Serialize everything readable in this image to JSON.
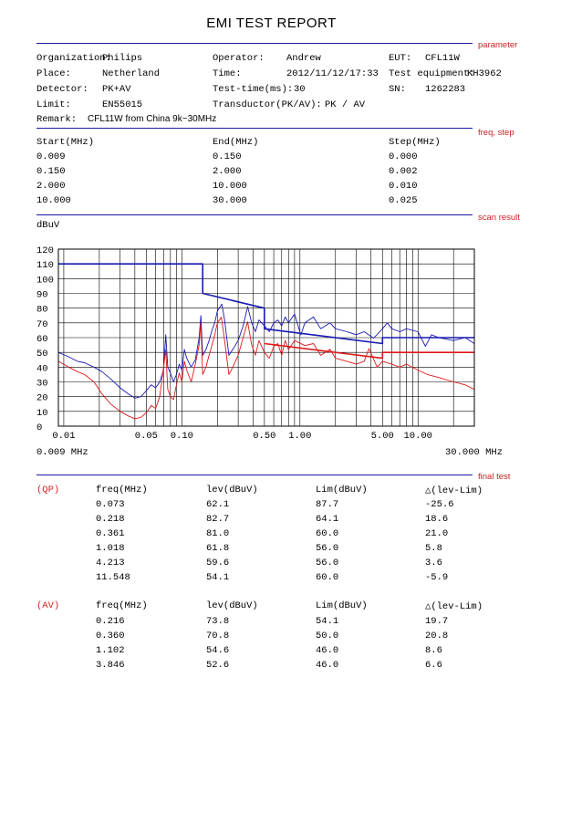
{
  "report_title": "EMI TEST REPORT",
  "section_labels": {
    "parameter": "parameter",
    "freq_step": "freq, step",
    "scan_result": "scan result",
    "final_test": "final test"
  },
  "parameter": {
    "organization_label": "Organization:",
    "organization": "Philips",
    "place_label": "Place:",
    "place": "Netherland",
    "detector_label": "Detector:",
    "detector": "PK+AV",
    "limit_label": "Limit:",
    "limit": "EN55015",
    "remark_label": "Remark:",
    "remark": "CFL11W from China 9k~30MHz",
    "operator_label": "Operator:",
    "operator": "Andrew",
    "time_label": "Time:",
    "time": "2012/11/12/17:33",
    "test_time_label": "Test-time(ms):",
    "test_time": "30",
    "transductor_label": "Transductor(PK/AV):",
    "transductor": "PK  /  AV",
    "eut_label": "EUT:",
    "eut": "CFL11W",
    "equipment_label": "Test equipment:",
    "equipment": "KH3962",
    "sn_label": "SN:",
    "sn": "1262283"
  },
  "freq_step": {
    "headers": [
      "Start(MHz)",
      "End(MHz)",
      "Step(MHz)"
    ],
    "rows": [
      [
        "0.009",
        "0.150",
        "0.000"
      ],
      [
        "0.150",
        "2.000",
        "0.002"
      ],
      [
        "2.000",
        "10.000",
        "0.010"
      ],
      [
        "10.000",
        "30.000",
        "0.025"
      ]
    ]
  },
  "chart_data": {
    "type": "line",
    "title": "scan result",
    "ylabel": "dBuV",
    "xscale": "log",
    "xlim": [
      0.009,
      30
    ],
    "ylim": [
      0,
      120
    ],
    "yticks": [
      "120",
      "110",
      "100",
      "90",
      "80",
      "70",
      "60",
      "50",
      "40",
      "30",
      "20",
      "10",
      "0"
    ],
    "xtick_labels": [
      {
        "v": 0.01,
        "label": "0.01"
      },
      {
        "v": 0.05,
        "label": "0.05"
      },
      {
        "v": 0.1,
        "label": "0.10"
      },
      {
        "v": 0.5,
        "label": "0.50"
      },
      {
        "v": 1,
        "label": "1.00"
      },
      {
        "v": 5,
        "label": "5.00"
      },
      {
        "v": 10,
        "label": "10.00"
      }
    ],
    "xrange_left": "0.009 MHz",
    "xrange_right": "30.000 MHz",
    "colors": {
      "qp": "#1a1ab4",
      "av": "#dd1a1a"
    },
    "series": [
      {
        "name": "QP limit",
        "color": "#1a1ab4",
        "points": [
          [
            0.009,
            110
          ],
          [
            0.15,
            110
          ],
          [
            0.15,
            90
          ],
          [
            0.5,
            80
          ],
          [
            0.5,
            66
          ],
          [
            5,
            56
          ],
          [
            5,
            60
          ],
          [
            30,
            60
          ]
        ]
      },
      {
        "name": "AV limit",
        "color": "#dd1a1a",
        "points": [
          [
            0.5,
            56
          ],
          [
            5,
            46
          ],
          [
            5,
            50
          ],
          [
            30,
            50
          ]
        ]
      },
      {
        "name": "QP scan",
        "color": "#1a1ab4",
        "points": [
          [
            0.009,
            50
          ],
          [
            0.011,
            47
          ],
          [
            0.013,
            44
          ],
          [
            0.015,
            43
          ],
          [
            0.018,
            40
          ],
          [
            0.021,
            37
          ],
          [
            0.025,
            32
          ],
          [
            0.03,
            26
          ],
          [
            0.035,
            22
          ],
          [
            0.04,
            19
          ],
          [
            0.045,
            20
          ],
          [
            0.05,
            24
          ],
          [
            0.055,
            28
          ],
          [
            0.06,
            26
          ],
          [
            0.065,
            30
          ],
          [
            0.07,
            38
          ],
          [
            0.073,
            62
          ],
          [
            0.076,
            40
          ],
          [
            0.08,
            36
          ],
          [
            0.085,
            30
          ],
          [
            0.09,
            35
          ],
          [
            0.095,
            42
          ],
          [
            0.1,
            38
          ],
          [
            0.105,
            52
          ],
          [
            0.11,
            46
          ],
          [
            0.12,
            40
          ],
          [
            0.13,
            45
          ],
          [
            0.14,
            60
          ],
          [
            0.145,
            75
          ],
          [
            0.15,
            48
          ],
          [
            0.16,
            52
          ],
          [
            0.17,
            58
          ],
          [
            0.18,
            65
          ],
          [
            0.19,
            70
          ],
          [
            0.2,
            78
          ],
          [
            0.218,
            82.7
          ],
          [
            0.23,
            72
          ],
          [
            0.25,
            48
          ],
          [
            0.27,
            52
          ],
          [
            0.3,
            58
          ],
          [
            0.33,
            68
          ],
          [
            0.361,
            81
          ],
          [
            0.39,
            70
          ],
          [
            0.42,
            64
          ],
          [
            0.45,
            72
          ],
          [
            0.5,
            68
          ],
          [
            0.55,
            64
          ],
          [
            0.6,
            70
          ],
          [
            0.65,
            72
          ],
          [
            0.7,
            68
          ],
          [
            0.75,
            74
          ],
          [
            0.8,
            70
          ],
          [
            0.9,
            76
          ],
          [
            1.018,
            61.8
          ],
          [
            1.1,
            70
          ],
          [
            1.3,
            74
          ],
          [
            1.5,
            66
          ],
          [
            1.8,
            70
          ],
          [
            2.0,
            66
          ],
          [
            2.5,
            64
          ],
          [
            3,
            62
          ],
          [
            3.5,
            64
          ],
          [
            4.213,
            59.6
          ],
          [
            5,
            66
          ],
          [
            5.5,
            70
          ],
          [
            6,
            66
          ],
          [
            7,
            64
          ],
          [
            8,
            66
          ],
          [
            10,
            64
          ],
          [
            11.548,
            54.1
          ],
          [
            13,
            62
          ],
          [
            15,
            60
          ],
          [
            20,
            58
          ],
          [
            25,
            60
          ],
          [
            30,
            56
          ]
        ]
      },
      {
        "name": "AV scan",
        "color": "#dd1a1a",
        "points": [
          [
            0.009,
            44
          ],
          [
            0.011,
            40
          ],
          [
            0.013,
            37
          ],
          [
            0.015,
            35
          ],
          [
            0.018,
            30
          ],
          [
            0.021,
            22
          ],
          [
            0.025,
            15
          ],
          [
            0.03,
            10
          ],
          [
            0.035,
            7
          ],
          [
            0.04,
            5
          ],
          [
            0.045,
            6
          ],
          [
            0.05,
            9
          ],
          [
            0.055,
            14
          ],
          [
            0.06,
            12
          ],
          [
            0.065,
            20
          ],
          [
            0.07,
            40
          ],
          [
            0.073,
            52
          ],
          [
            0.076,
            25
          ],
          [
            0.08,
            20
          ],
          [
            0.085,
            18
          ],
          [
            0.09,
            28
          ],
          [
            0.095,
            36
          ],
          [
            0.1,
            30
          ],
          [
            0.105,
            44
          ],
          [
            0.11,
            38
          ],
          [
            0.12,
            30
          ],
          [
            0.13,
            42
          ],
          [
            0.14,
            55
          ],
          [
            0.145,
            70
          ],
          [
            0.15,
            35
          ],
          [
            0.16,
            40
          ],
          [
            0.17,
            48
          ],
          [
            0.18,
            55
          ],
          [
            0.19,
            62
          ],
          [
            0.2,
            70
          ],
          [
            0.216,
            73.8
          ],
          [
            0.23,
            58
          ],
          [
            0.25,
            35
          ],
          [
            0.27,
            40
          ],
          [
            0.3,
            48
          ],
          [
            0.33,
            60
          ],
          [
            0.36,
            70.8
          ],
          [
            0.39,
            55
          ],
          [
            0.42,
            48
          ],
          [
            0.45,
            58
          ],
          [
            0.5,
            50
          ],
          [
            0.55,
            46
          ],
          [
            0.6,
            54
          ],
          [
            0.65,
            56
          ],
          [
            0.7,
            48
          ],
          [
            0.75,
            58
          ],
          [
            0.8,
            52
          ],
          [
            0.9,
            58
          ],
          [
            1.102,
            54.6
          ],
          [
            1.3,
            56
          ],
          [
            1.5,
            48
          ],
          [
            1.8,
            52
          ],
          [
            2.0,
            46
          ],
          [
            2.5,
            44
          ],
          [
            3,
            42
          ],
          [
            3.5,
            44
          ],
          [
            3.846,
            52.6
          ],
          [
            4.5,
            40
          ],
          [
            5,
            44
          ],
          [
            6,
            42
          ],
          [
            7,
            40
          ],
          [
            8,
            42
          ],
          [
            10,
            38
          ],
          [
            12,
            35
          ],
          [
            15,
            33
          ],
          [
            20,
            30
          ],
          [
            25,
            28
          ],
          [
            30,
            25
          ]
        ]
      }
    ]
  },
  "final_test": {
    "qp": {
      "label": "(QP)",
      "headers": [
        "freq(MHz)",
        "lev(dBuV)",
        "Lim(dBuV)",
        "△(lev-Lim)"
      ],
      "rows": [
        [
          "0.073",
          "62.1",
          "87.7",
          "-25.6"
        ],
        [
          "0.218",
          "82.7",
          "64.1",
          "18.6"
        ],
        [
          "0.361",
          "81.0",
          "60.0",
          "21.0"
        ],
        [
          "1.018",
          "61.8",
          "56.0",
          "5.8"
        ],
        [
          "4.213",
          "59.6",
          "56.0",
          "3.6"
        ],
        [
          "11.548",
          "54.1",
          "60.0",
          "-5.9"
        ]
      ]
    },
    "av": {
      "label": "(AV)",
      "headers": [
        "freq(MHz)",
        "lev(dBuV)",
        "Lim(dBuV)",
        "△(lev-Lim)"
      ],
      "rows": [
        [
          "0.216",
          "73.8",
          "54.1",
          "19.7"
        ],
        [
          "0.360",
          "70.8",
          "50.0",
          "20.8"
        ],
        [
          "1.102",
          "54.6",
          "46.0",
          "8.6"
        ],
        [
          "3.846",
          "52.6",
          "46.0",
          "6.6"
        ]
      ]
    }
  }
}
